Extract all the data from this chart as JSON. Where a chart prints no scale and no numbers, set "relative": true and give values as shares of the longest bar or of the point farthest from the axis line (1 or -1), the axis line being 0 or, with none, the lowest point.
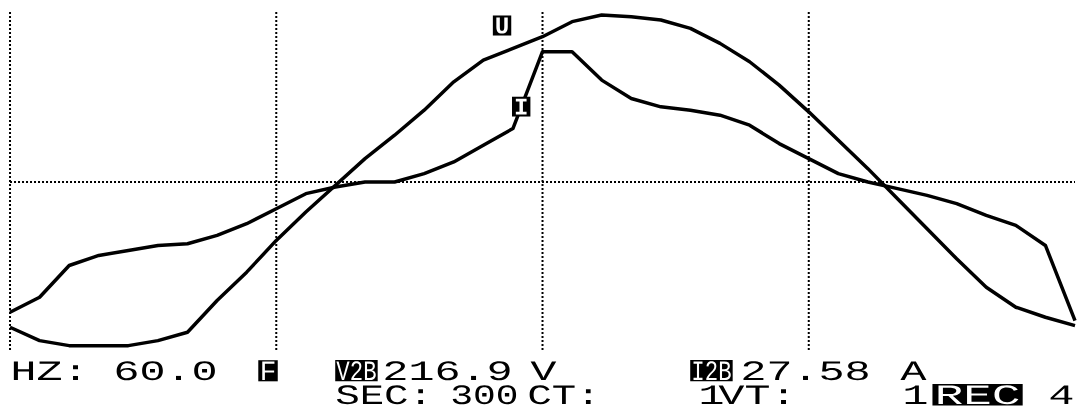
{
  "chart_data": {
    "type": "line",
    "relative": true,
    "grid": true,
    "legend": false,
    "marker": "none",
    "line_style": "solid",
    "categories": [
      null,
      null,
      null,
      null,
      null,
      null,
      null,
      null,
      null,
      null,
      null,
      null,
      null,
      null,
      null,
      null,
      null,
      null,
      null,
      null,
      null,
      null,
      null,
      null,
      null,
      null,
      null,
      null,
      null,
      null,
      null,
      null,
      null,
      null,
      null,
      null,
      null
    ],
    "series": [
      {
        "name": "U",
        "color": "#000000",
        "values": [
          -0.87,
          -0.95,
          -0.98,
          -0.98,
          -0.98,
          -0.95,
          -0.9,
          -0.71,
          -0.54,
          -0.35,
          -0.18,
          -0.02,
          0.14,
          0.28,
          0.43,
          0.6,
          0.73,
          0.8,
          0.87,
          0.96,
          1.0,
          0.99,
          0.97,
          0.92,
          0.83,
          0.72,
          0.58,
          0.42,
          0.25,
          0.08,
          -0.1,
          -0.28,
          -0.46,
          -0.63,
          -0.75,
          -0.81,
          -0.86
        ]
      },
      {
        "name": "I",
        "color": "#000000",
        "values": [
          -0.78,
          -0.69,
          -0.5,
          -0.44,
          -0.41,
          -0.38,
          -0.37,
          -0.32,
          -0.25,
          -0.16,
          -0.07,
          -0.03,
          0,
          0,
          0.05,
          0.12,
          0.22,
          0.32,
          0.78,
          0.78,
          0.61,
          0.5,
          0.45,
          0.43,
          0.4,
          0.34,
          0.23,
          0.14,
          0.05,
          0,
          -0.04,
          -0.08,
          -0.13,
          -0.2,
          -0.26,
          -0.38,
          -0.83
        ]
      }
    ],
    "annotations": [
      "HZ:",
      "60.0",
      "F",
      "V2B",
      "216.9",
      "V",
      "I2B",
      "27.58",
      "A",
      "SEC:",
      "300",
      "CT:",
      "1",
      "VT:",
      "1",
      "REC",
      "4"
    ]
  }
}
